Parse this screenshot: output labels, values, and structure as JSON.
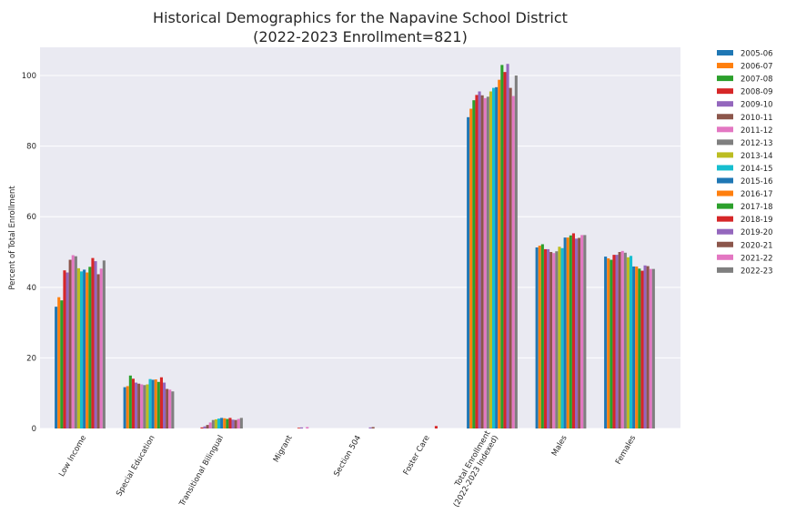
{
  "chart_data": {
    "type": "bar",
    "title_line1": "Historical Demographics for the Napavine School District",
    "title_line2": "(2022-2023 Enrollment=821)",
    "ylabel": "Percent of Total Enrollment",
    "xlabel": "",
    "ylim": [
      0,
      108
    ],
    "yticks": [
      0,
      20,
      40,
      60,
      80,
      100
    ],
    "grid": true,
    "legend_position": "outside-right",
    "categories": [
      "Low Income",
      "Special Education",
      "Transitional Bilingual",
      "Migrant",
      "Section 504",
      "Foster Care",
      "Total Enrollment\n(2022-2023 Indexed)",
      "Males",
      "Females"
    ],
    "series": [
      {
        "name": "2005-06",
        "color": "#1f77b4",
        "values": [
          34.5,
          11.7,
          0.0,
          0.0,
          0.0,
          0.0,
          88.2,
          51.3,
          48.7
        ]
      },
      {
        "name": "2006-07",
        "color": "#ff7f0e",
        "values": [
          37.2,
          12.0,
          0.0,
          0.0,
          0.0,
          0.0,
          90.6,
          51.8,
          48.2
        ]
      },
      {
        "name": "2007-08",
        "color": "#2ca02c",
        "values": [
          36.3,
          15.0,
          0.0,
          0.0,
          0.0,
          0.0,
          93.0,
          52.2,
          47.8
        ]
      },
      {
        "name": "2008-09",
        "color": "#d62728",
        "values": [
          44.8,
          14.1,
          0.3,
          0.0,
          0.0,
          0.0,
          94.5,
          50.8,
          49.2
        ]
      },
      {
        "name": "2009-10",
        "color": "#9467bd",
        "values": [
          44.2,
          13.0,
          0.6,
          0.0,
          0.0,
          0.0,
          95.5,
          50.8,
          49.2
        ]
      },
      {
        "name": "2010-11",
        "color": "#8c564b",
        "values": [
          47.8,
          12.7,
          1.0,
          0.0,
          0.0,
          0.0,
          94.4,
          50.0,
          50.0
        ]
      },
      {
        "name": "2011-12",
        "color": "#e377c2",
        "values": [
          49.1,
          12.5,
          1.7,
          0.0,
          0.0,
          0.0,
          93.6,
          49.7,
          50.3
        ]
      },
      {
        "name": "2012-13",
        "color": "#7f7f7f",
        "values": [
          48.8,
          12.3,
          2.4,
          0.0,
          0.0,
          0.0,
          94.0,
          50.2,
          49.8
        ]
      },
      {
        "name": "2013-14",
        "color": "#bcbd22",
        "values": [
          45.4,
          12.5,
          2.6,
          0.0,
          0.0,
          0.0,
          95.5,
          51.5,
          48.5
        ]
      },
      {
        "name": "2014-15",
        "color": "#17becf",
        "values": [
          44.5,
          14.0,
          2.8,
          0.0,
          0.0,
          0.0,
          96.5,
          51.1,
          48.9
        ]
      },
      {
        "name": "2015-16",
        "color": "#1f77b4",
        "values": [
          45.0,
          13.8,
          3.0,
          0.0,
          0.0,
          0.0,
          96.7,
          54.1,
          45.9
        ]
      },
      {
        "name": "2016-17",
        "color": "#ff7f0e",
        "values": [
          44.2,
          13.9,
          2.9,
          0.0,
          0.0,
          0.0,
          98.8,
          54.1,
          45.9
        ]
      },
      {
        "name": "2017-18",
        "color": "#2ca02c",
        "values": [
          45.8,
          13.2,
          2.7,
          0.0,
          0.0,
          0.0,
          103.0,
          54.7,
          45.3
        ]
      },
      {
        "name": "2018-19",
        "color": "#d62728",
        "values": [
          48.3,
          14.5,
          3.0,
          0.2,
          0.0,
          0.7,
          101.0,
          55.3,
          44.7
        ]
      },
      {
        "name": "2019-20",
        "color": "#9467bd",
        "values": [
          47.4,
          13.0,
          2.5,
          0.3,
          0.3,
          0.0,
          103.3,
          53.8,
          46.2
        ]
      },
      {
        "name": "2020-21",
        "color": "#8c564b",
        "values": [
          43.7,
          11.2,
          2.4,
          0.0,
          0.4,
          0.0,
          96.5,
          54.0,
          46.0
        ]
      },
      {
        "name": "2021-22",
        "color": "#e377c2",
        "values": [
          45.3,
          11.0,
          2.7,
          0.4,
          0.0,
          0.0,
          94.2,
          54.8,
          45.2
        ]
      },
      {
        "name": "2022-23",
        "color": "#7f7f7f",
        "values": [
          47.6,
          10.5,
          3.0,
          0.0,
          0.0,
          0.0,
          100.0,
          54.8,
          45.2
        ]
      }
    ]
  }
}
